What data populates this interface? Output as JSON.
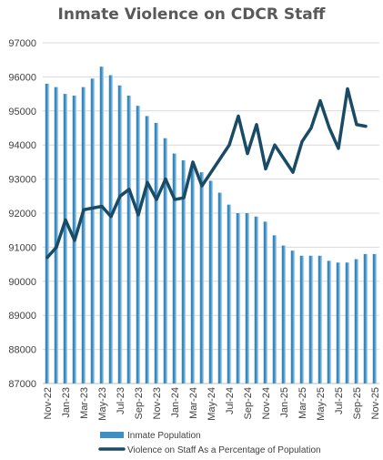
{
  "chart_data": {
    "type": "bar+line",
    "title": "Inmate Violence on CDCR Staff",
    "xlabel": "",
    "ylabel": "",
    "ylim": [
      87000,
      97000
    ],
    "yticks": [
      87000,
      88000,
      89000,
      90000,
      91000,
      92000,
      93000,
      94000,
      95000,
      96000,
      97000
    ],
    "x_tick_labels": [
      "Nov-22",
      "Jan-23",
      "Mar-23",
      "May-23",
      "Jul-23",
      "Sep-23",
      "Nov-23",
      "Jan-24",
      "Mar-24",
      "May-24",
      "Jul-24",
      "Sep-24",
      "Nov-24",
      "Jan-25",
      "Mar-25",
      "May-25",
      "Jul-25",
      "Sep-25",
      "Nov-25"
    ],
    "categories": [
      "Nov-22",
      "Dec-22",
      "Jan-23",
      "Feb-23",
      "Mar-23",
      "Apr-23",
      "May-23",
      "Jun-23",
      "Jul-23",
      "Aug-23",
      "Sep-23",
      "Oct-23",
      "Nov-23",
      "Dec-23",
      "Jan-24",
      "Feb-24",
      "Mar-24",
      "Apr-24",
      "May-24",
      "Jun-24",
      "Jul-24",
      "Aug-24",
      "Sep-24",
      "Oct-24",
      "Nov-24",
      "Dec-24",
      "Jan-25",
      "Feb-25",
      "Mar-25",
      "Apr-25",
      "May-25",
      "Jun-25",
      "Jul-25",
      "Aug-25",
      "Sep-25",
      "Oct-25",
      "Nov-25"
    ],
    "grid": true,
    "legend_position": "bottom",
    "series": [
      {
        "name": "Inmate Population",
        "kind": "bar",
        "color": "#3e8fc4",
        "values": [
          95800,
          95700,
          95500,
          95450,
          95700,
          95950,
          96300,
          96050,
          95750,
          95450,
          95150,
          94850,
          94650,
          94200,
          93750,
          93550,
          93400,
          93200,
          92950,
          92600,
          92250,
          92000,
          92000,
          91900,
          91750,
          91350,
          91050,
          90900,
          90750,
          90750,
          90750,
          90600,
          90550,
          90550,
          90650,
          90800,
          90800
        ]
      },
      {
        "name": "Violence on Staff As a Percentage of Population",
        "kind": "line",
        "color": "#1a4b66",
        "values": [
          90700,
          91000,
          91800,
          91200,
          92100,
          92150,
          92200,
          91900,
          92500,
          92700,
          91950,
          92900,
          92400,
          93000,
          92400,
          92450,
          93500,
          92800,
          93200,
          93600,
          94000,
          94850,
          93750,
          94600,
          93300,
          94000,
          93600,
          93200,
          94100,
          94500,
          95300,
          94500,
          93900,
          95650,
          94600,
          94550,
          null
        ]
      }
    ]
  }
}
